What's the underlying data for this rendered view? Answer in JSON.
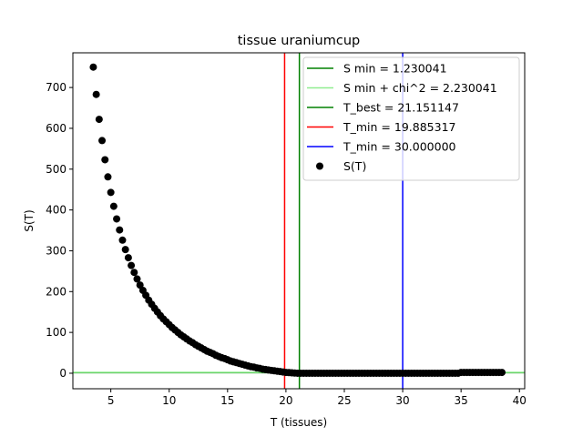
{
  "chart_data": {
    "type": "scatter",
    "title": "tissue uraniumcup",
    "xlabel": "T (tissues)",
    "ylabel": "S(T)",
    "xlim": [
      1.75,
      40.45
    ],
    "ylim": [
      -38,
      785
    ],
    "xticks": [
      5,
      10,
      15,
      20,
      25,
      30,
      35,
      40
    ],
    "yticks": [
      0,
      100,
      200,
      300,
      400,
      500,
      600,
      700
    ],
    "grid": false,
    "legend_position": "top-right",
    "series": [
      {
        "name": "S(T)",
        "kind": "scatter",
        "color": "#000000",
        "x": [
          3.5,
          3.75,
          4.0,
          4.25,
          4.5,
          4.75,
          5.0,
          5.25,
          5.5,
          5.75,
          6.0,
          6.25,
          6.5,
          6.75,
          7.0,
          7.25,
          7.5,
          7.75,
          8.0,
          8.25,
          8.5,
          8.75,
          9.0,
          9.25,
          9.5,
          9.75,
          10.0,
          10.25,
          10.5,
          10.75,
          11.0,
          11.25,
          11.5,
          11.75,
          12.0,
          12.25,
          12.5,
          12.75,
          13.0,
          13.25,
          13.5,
          13.75,
          14.0,
          14.25,
          14.5,
          14.75,
          15.0,
          15.25,
          15.5,
          15.75,
          16.0,
          16.25,
          16.5,
          16.75,
          17.0,
          17.25,
          17.5,
          17.75,
          18.0,
          18.25,
          18.5,
          18.75,
          19.0,
          19.25,
          19.5,
          19.75,
          20.0,
          20.25,
          20.5,
          20.75,
          21.0,
          21.25,
          21.5,
          21.75,
          22.0,
          22.25,
          22.5,
          22.75,
          23.0,
          23.25,
          23.5,
          23.75,
          24.0,
          24.25,
          24.5,
          24.75,
          25.0,
          25.25,
          25.5,
          25.75,
          26.0,
          26.25,
          26.5,
          26.75,
          27.0,
          27.25,
          27.5,
          27.75,
          28.0,
          28.25,
          28.5,
          28.75,
          29.0,
          29.25,
          29.5,
          29.75,
          30.0,
          30.25,
          30.5,
          30.75,
          31.0,
          31.25,
          31.5,
          31.75,
          32.0,
          32.25,
          32.5,
          32.75,
          33.0,
          33.25,
          33.5,
          33.75,
          34.0,
          34.25,
          34.5,
          34.75,
          35.0,
          35.25,
          35.5,
          35.75,
          36.0,
          36.25,
          36.5,
          36.75,
          37.0,
          37.25,
          37.5,
          37.75,
          38.0,
          38.25,
          38.5
        ],
        "y": [
          750,
          683,
          622,
          570,
          523,
          481,
          443,
          409,
          378,
          351,
          326,
          303,
          283,
          264,
          247,
          231,
          216,
          203,
          191,
          179,
          169,
          159,
          150,
          141,
          133,
          126,
          119,
          112,
          106,
          100,
          94,
          89,
          84,
          79,
          75,
          70,
          66,
          62,
          58,
          54,
          51,
          48,
          44,
          41,
          38,
          36,
          33,
          30,
          28,
          26,
          24,
          22,
          20,
          18,
          16,
          15,
          13,
          12,
          10,
          9,
          8,
          7,
          6,
          5,
          4,
          3,
          2,
          1.5,
          1,
          0.5,
          0,
          0,
          0,
          0,
          0,
          0,
          0,
          0,
          0,
          0,
          0,
          0,
          0,
          0,
          0,
          0,
          0,
          0,
          0,
          0,
          0,
          0,
          0,
          0,
          0,
          0,
          0,
          0,
          0,
          0,
          0,
          0,
          0,
          0,
          0,
          0,
          0,
          0,
          0,
          0,
          0,
          0,
          0,
          0,
          0,
          0,
          0,
          0,
          0,
          0,
          0,
          0,
          0,
          0,
          0,
          0,
          2,
          2,
          2,
          2,
          2,
          2,
          2,
          2,
          2,
          2,
          2,
          2,
          2,
          2,
          2
        ]
      }
    ],
    "reference_lines": [
      {
        "name": "S min = 1.230041",
        "orientation": "horizontal",
        "value": 1.230041,
        "color": "#008000"
      },
      {
        "name": "S min + chi^2 = 2.230041",
        "orientation": "horizontal",
        "value": 2.230041,
        "color": "#90ee90"
      },
      {
        "name": "T_best = 21.151147",
        "orientation": "vertical",
        "value": 21.151147,
        "color": "#008000"
      },
      {
        "name": "T_min = 19.885317",
        "orientation": "vertical",
        "value": 19.885317,
        "color": "#ff0000"
      },
      {
        "name": "T_min = 30.000000",
        "orientation": "vertical",
        "value": 30.0,
        "color": "#0000ff"
      }
    ],
    "legend": [
      {
        "label": "S min = 1.230041",
        "marker": "line",
        "color": "#008000"
      },
      {
        "label": "S min + chi^2 = 2.230041",
        "marker": "line",
        "color": "#90ee90"
      },
      {
        "label": "T_best = 21.151147",
        "marker": "line",
        "color": "#008000"
      },
      {
        "label": "T_min = 19.885317",
        "marker": "line",
        "color": "#ff0000"
      },
      {
        "label": "T_min = 30.000000",
        "marker": "line",
        "color": "#0000ff"
      },
      {
        "label": "S(T)",
        "marker": "dot",
        "color": "#000000"
      }
    ]
  }
}
